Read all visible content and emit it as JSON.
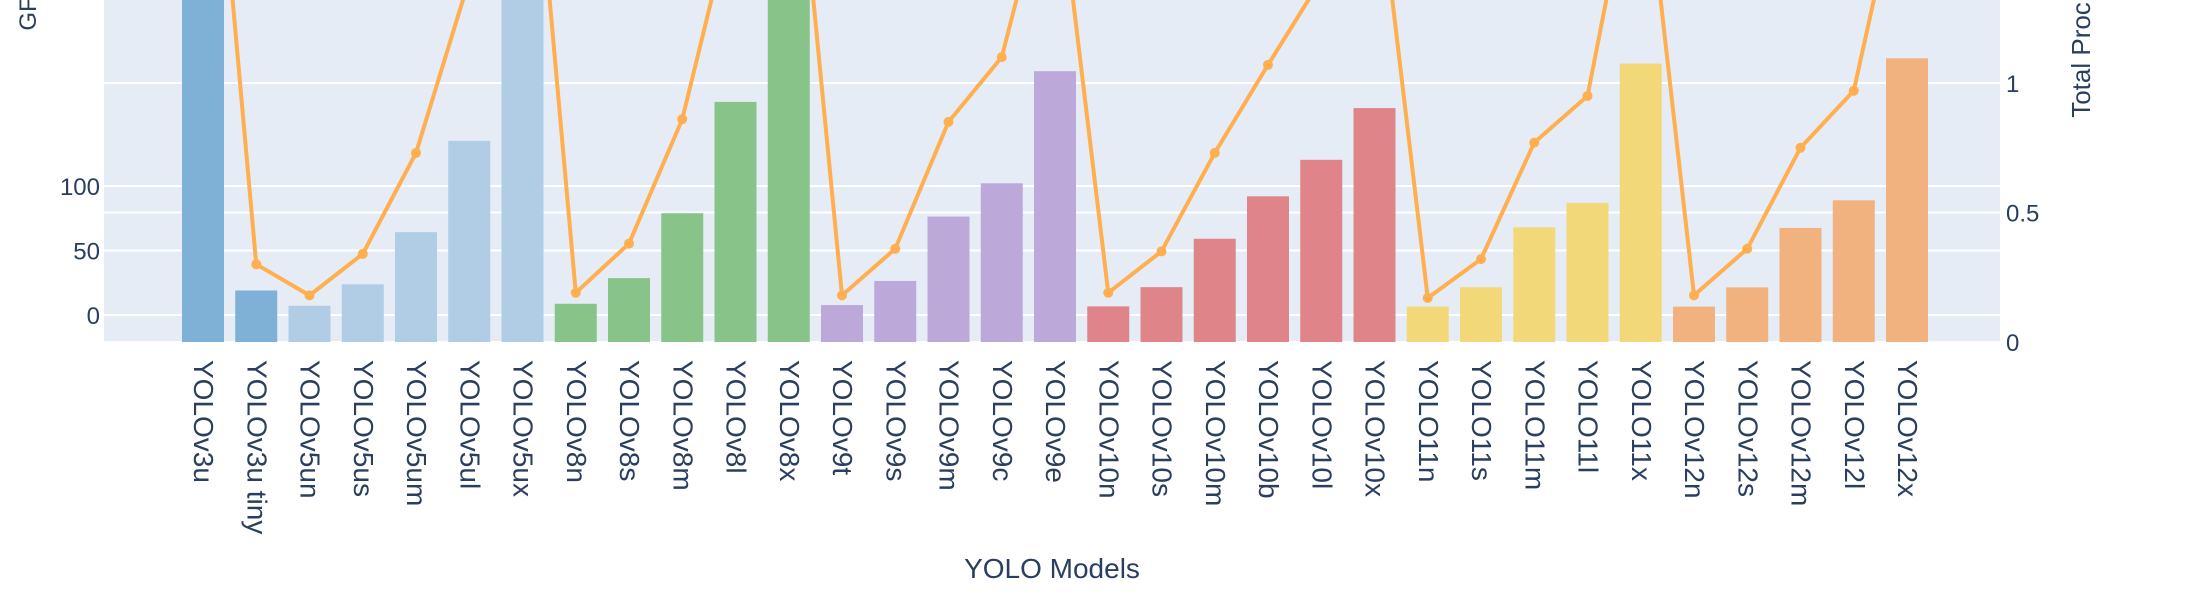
{
  "chart_data": {
    "type": "bar",
    "title": "",
    "xlabel": "YOLO Models",
    "ylabel_left": "GF",
    "ylabel_right": "Total Proc",
    "categories": [
      "YOLOv3u",
      "YOLOv3u tiny",
      "YOLOv5un",
      "YOLOv5us",
      "YOLOv5um",
      "YOLOv5ul",
      "YOLOv5ux",
      "YOLOv8n",
      "YOLOv8s",
      "YOLOv8m",
      "YOLOv8l",
      "YOLOv8x",
      "YOLOv9t",
      "YOLOv9s",
      "YOLOv9m",
      "YOLOv9c",
      "YOLOv9e",
      "YOLOv10n",
      "YOLOv10s",
      "YOLOv10m",
      "YOLOv10b",
      "YOLOv10l",
      "YOLOv10x",
      "YOLO11n",
      "YOLO11s",
      "YOLO11m",
      "YOLO11l",
      "YOLO11x",
      "YOLOv12n",
      "YOLOv12s",
      "YOLOv12m",
      "YOLOv12l",
      "YOLOv12x"
    ],
    "bar_colors": [
      "#7fb0d5",
      "#7fb0d5",
      "#b1cce5",
      "#b1cce5",
      "#b1cce5",
      "#b1cce5",
      "#b1cce5",
      "#88c48a",
      "#88c48a",
      "#88c48a",
      "#88c48a",
      "#88c48a",
      "#bda8da",
      "#bda8da",
      "#bda8da",
      "#bda8da",
      "#bda8da",
      "#df8589",
      "#df8589",
      "#df8589",
      "#df8589",
      "#df8589",
      "#df8589",
      "#f3d87a",
      "#f3d87a",
      "#f3d87a",
      "#f3d87a",
      "#f3d87a",
      "#f2b27f",
      "#f2b27f",
      "#f2b27f",
      "#f2b27f",
      "#f2b27f"
    ],
    "bar_values": [
      282.2,
      19.0,
      7.1,
      23.8,
      64.2,
      135.0,
      246.4,
      8.7,
      28.6,
      78.9,
      165.2,
      257.8,
      7.7,
      26.4,
      76.3,
      102.1,
      189.0,
      6.7,
      21.6,
      59.1,
      92.0,
      120.3,
      160.4,
      6.5,
      21.5,
      68.0,
      86.9,
      194.9,
      6.5,
      21.4,
      67.5,
      88.9,
      199.0
    ],
    "left_axis": {
      "range": [
        -11,
        120
      ],
      "ticks": [
        0,
        50,
        100
      ]
    },
    "line_series": {
      "color": "#ffaf4f",
      "values": [
        2.6,
        0.3,
        0.18,
        0.34,
        0.73,
        1.4,
        2.5,
        0.19,
        0.38,
        0.86,
        1.7,
        2.3,
        0.18,
        0.36,
        0.85,
        1.1,
        1.9,
        0.19,
        0.35,
        0.73,
        1.07,
        1.4,
        1.9,
        0.17,
        0.32,
        0.77,
        0.95,
        2.0,
        0.18,
        0.36,
        0.75,
        0.97,
        1.9
      ]
    },
    "right_axis": {
      "range": [
        0,
        1.32
      ],
      "ticks": [
        0,
        0.5,
        1
      ],
      "tick_labels": [
        "0",
        "0.5",
        "1"
      ]
    },
    "grid": true,
    "plot_bg": "#e5ecf6"
  }
}
